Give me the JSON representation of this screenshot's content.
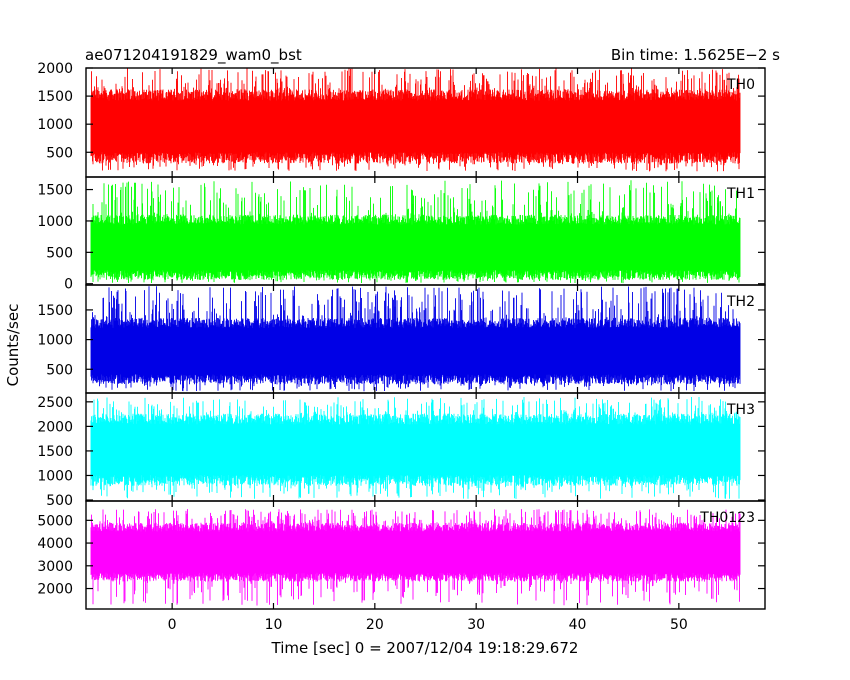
{
  "header": {
    "left_title": "ae071204191829_wam0_bst",
    "right_title": "Bin time: 1.5625E−2 s"
  },
  "chart_data": {
    "type": "line",
    "title": "ae071204191829_wam0_bst",
    "xlabel": "Time [sec] 0 = 2007/12/04 19:18:29.672",
    "ylabel": "Counts/sec",
    "xlim": [
      -8.5,
      58.5
    ],
    "data_xrange": [
      -8.0,
      56.0
    ],
    "bin_time": 0.015625,
    "x_ticks": [
      0,
      10,
      20,
      30,
      40,
      50
    ],
    "x_tick_labels": [
      "0",
      "10",
      "20",
      "30",
      "40",
      "50"
    ],
    "grid": false,
    "series": [
      {
        "name": "TH0",
        "color": "#ff0000",
        "ylim": [
          60,
          2000
        ],
        "y_ticks": [
          500,
          1000,
          1500,
          2000
        ],
        "y_tick_labels": [
          "500",
          "1000",
          "1500",
          "2000"
        ],
        "band_low": 400,
        "band_high": 1520,
        "spike_min": 160,
        "spike_max": 2000
      },
      {
        "name": "TH1",
        "color": "#00ff00",
        "ylim": [
          -20,
          1700
        ],
        "y_ticks": [
          0,
          500,
          1000,
          1500
        ],
        "y_tick_labels": [
          "0",
          "500",
          "1000",
          "1500"
        ],
        "band_low": 140,
        "band_high": 1020,
        "spike_min": 10,
        "spike_max": 1650
      },
      {
        "name": "TH2",
        "color": "#0000e6",
        "ylim": [
          100,
          1920
        ],
        "y_ticks": [
          500,
          1000,
          1500
        ],
        "y_tick_labels": [
          "500",
          "1000",
          "1500"
        ],
        "band_low": 330,
        "band_high": 1280,
        "spike_min": 130,
        "spike_max": 1900
      },
      {
        "name": "TH3",
        "color": "#00ffff",
        "ylim": [
          480,
          2680
        ],
        "y_ticks": [
          500,
          1000,
          1500,
          2000,
          2500
        ],
        "y_tick_labels": [
          "500",
          "1000",
          "1500",
          "2000",
          "2500"
        ],
        "band_low": 900,
        "band_high": 2150,
        "spike_min": 520,
        "spike_max": 2600
      },
      {
        "name": "TH0123",
        "color": "#ff00ff",
        "ylim": [
          1100,
          5850
        ],
        "y_ticks": [
          2000,
          3000,
          4000,
          5000
        ],
        "y_tick_labels": [
          "2000",
          "3000",
          "4000",
          "5000"
        ],
        "band_low": 2500,
        "band_high": 4700,
        "spike_min": 1250,
        "spike_max": 5500
      }
    ]
  }
}
